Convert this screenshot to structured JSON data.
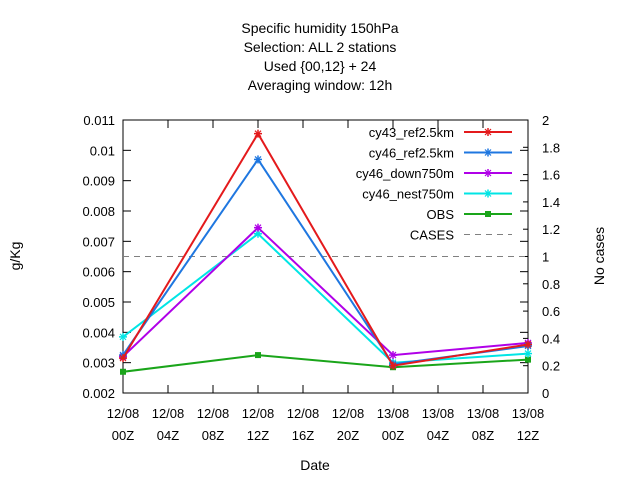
{
  "chart_data": {
    "type": "line",
    "title_lines": [
      "Specific humidity 150hPa",
      "Selection: ALL      2 stations",
      "Used {00,12} + 24",
      "Averaging window: 12h"
    ],
    "xlabel": "Date",
    "ylabel": "g/Kg",
    "y2label": "No cases",
    "x_ticks": [
      {
        "hour": 0,
        "line1": "12/08",
        "line2": "00Z"
      },
      {
        "hour": 4,
        "line1": "12/08",
        "line2": "04Z"
      },
      {
        "hour": 8,
        "line1": "12/08",
        "line2": "08Z"
      },
      {
        "hour": 12,
        "line1": "12/08",
        "line2": "12Z"
      },
      {
        "hour": 16,
        "line1": "12/08",
        "line2": "16Z"
      },
      {
        "hour": 20,
        "line1": "12/08",
        "line2": "20Z"
      },
      {
        "hour": 24,
        "line1": "13/08",
        "line2": "00Z"
      },
      {
        "hour": 28,
        "line1": "13/08",
        "line2": "04Z"
      },
      {
        "hour": 32,
        "line1": "13/08",
        "line2": "08Z"
      },
      {
        "hour": 36,
        "line1": "13/08",
        "line2": "12Z"
      }
    ],
    "xlim": [
      0,
      36
    ],
    "ylim": [
      0.002,
      0.011
    ],
    "y_ticks": [
      0.002,
      0.003,
      0.004,
      0.005,
      0.006,
      0.007,
      0.008,
      0.009,
      0.01,
      0.011
    ],
    "y2lim": [
      0,
      2
    ],
    "y2_ticks": [
      0,
      0.2,
      0.4,
      0.6,
      0.8,
      1,
      1.2,
      1.4,
      1.6,
      1.8,
      2
    ],
    "legend_position": "top-right",
    "grid": false,
    "series": [
      {
        "name": "cy43_ref2.5km",
        "color": "#e41a1c",
        "marker": "cross",
        "dash": "",
        "axis": "y",
        "points": [
          [
            0,
            0.00315
          ],
          [
            12,
            0.01055
          ],
          [
            24,
            0.0029
          ],
          [
            36,
            0.0036
          ]
        ]
      },
      {
        "name": "cy46_ref2.5km",
        "color": "#1f77e0",
        "marker": "star",
        "dash": "",
        "axis": "y",
        "points": [
          [
            0,
            0.00325
          ],
          [
            12,
            0.0097
          ],
          [
            24,
            0.00295
          ],
          [
            36,
            0.00355
          ]
        ]
      },
      {
        "name": "cy46_down750m",
        "color": "#b000e8",
        "marker": "cross",
        "dash": "",
        "axis": "y",
        "points": [
          [
            0,
            0.0032
          ],
          [
            12,
            0.00745
          ],
          [
            24,
            0.00325
          ],
          [
            36,
            0.00365
          ]
        ]
      },
      {
        "name": "cy46_nest750m",
        "color": "#00e5e5",
        "marker": "star",
        "dash": "",
        "axis": "y",
        "points": [
          [
            0,
            0.00385
          ],
          [
            12,
            0.00725
          ],
          [
            24,
            0.003
          ],
          [
            36,
            0.0033
          ]
        ]
      },
      {
        "name": "OBS",
        "color": "#1aa51a",
        "marker": "box",
        "dash": "",
        "axis": "y",
        "points": [
          [
            0,
            0.0027
          ],
          [
            12,
            0.00325
          ],
          [
            24,
            0.00285
          ],
          [
            36,
            0.0031
          ]
        ]
      },
      {
        "name": "CASES",
        "color": "#808080",
        "marker": "none",
        "dash": "6,5",
        "axis": "y2",
        "points": [
          [
            0,
            1.0
          ],
          [
            12,
            1.0
          ],
          [
            24,
            1.0
          ],
          [
            36,
            1.0
          ]
        ]
      }
    ]
  }
}
